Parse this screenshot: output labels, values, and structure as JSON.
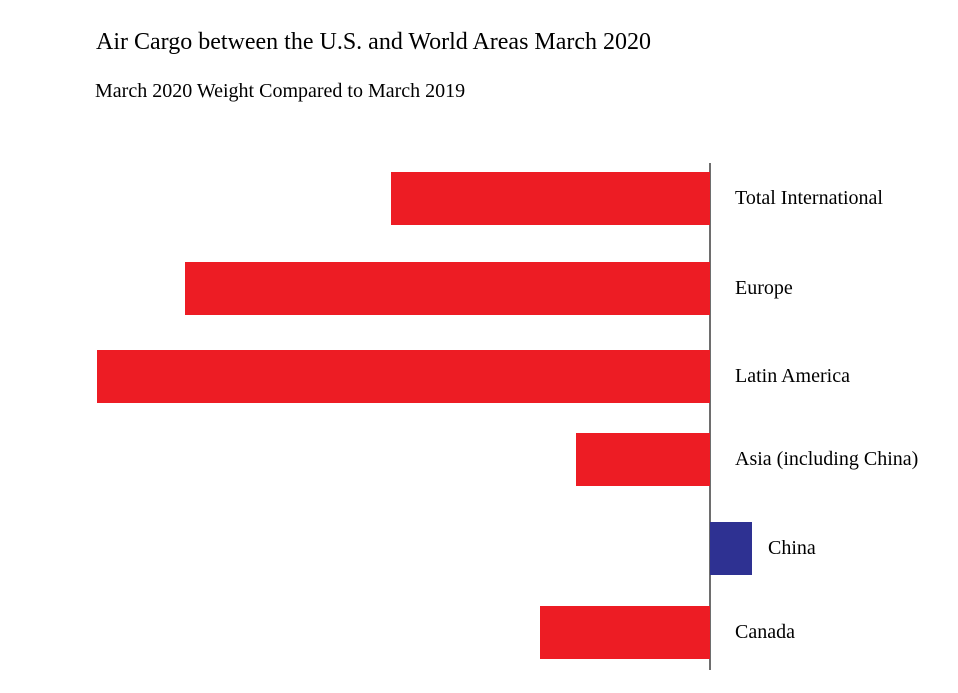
{
  "chart_data": {
    "type": "bar",
    "orientation": "horizontal",
    "title": "Air Cargo between the U.S. and World Areas March 2020",
    "subtitle": "March 2020 Weight Compared to March 2019",
    "categories": [
      "Total International",
      "Europe",
      "Latin America",
      "Asia (including China)",
      "China",
      "Canada"
    ],
    "values": [
      -15.2,
      -25.0,
      -29.2,
      -6.4,
      2.0,
      -8.1
    ],
    "value_labels": [
      "-15.2%",
      "-25.0%",
      "-29.2%",
      "-6.4%",
      "2.0%",
      "-8.1%"
    ],
    "unit": "%",
    "baseline": 0,
    "xlim": [
      -30,
      3
    ],
    "grid": false,
    "legend": "none",
    "colors": {
      "negative_bar": "#ED1C24",
      "positive_bar": "#2E3192",
      "axis_line": "#6E6E6E",
      "text": "#000000",
      "background": "#FFFFFF"
    }
  }
}
